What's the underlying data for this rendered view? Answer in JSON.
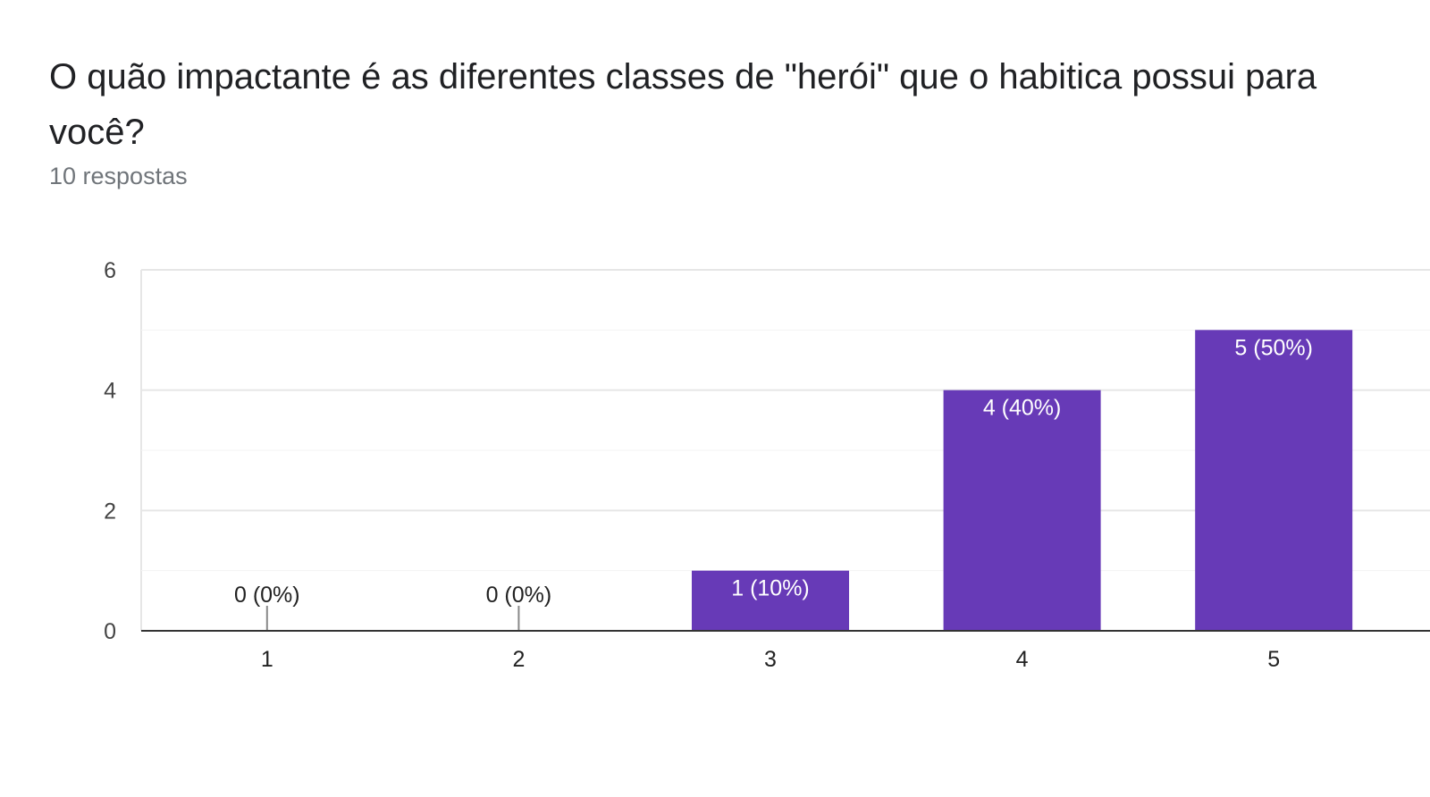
{
  "header": {
    "title": "O quão impactante é as diferentes classes de \"herói\" que o habitica possui para você?",
    "subtitle": "10 respostas"
  },
  "colors": {
    "bar": "#673ab7",
    "label_inside": "#ffffff",
    "label_outside": "#222222",
    "gridline": "#e6e6e6",
    "gridline_minor": "#f3f3f3",
    "axis": "#333333"
  },
  "chart_data": {
    "type": "bar",
    "categories": [
      "1",
      "2",
      "3",
      "4",
      "5"
    ],
    "values": [
      0,
      0,
      1,
      4,
      5
    ],
    "data_labels": [
      "0 (0%)",
      "0 (0%)",
      "1 (10%)",
      "4 (40%)",
      "5 (50%)"
    ],
    "title": "O quão impactante é as diferentes classes de \"herói\" que o habitica possui para você?",
    "subtitle": "10 respostas",
    "xlabel": "",
    "ylabel": "",
    "ylim": [
      0,
      6
    ],
    "yticks": [
      0,
      2,
      4,
      6
    ],
    "grid": true,
    "legend": "none"
  }
}
